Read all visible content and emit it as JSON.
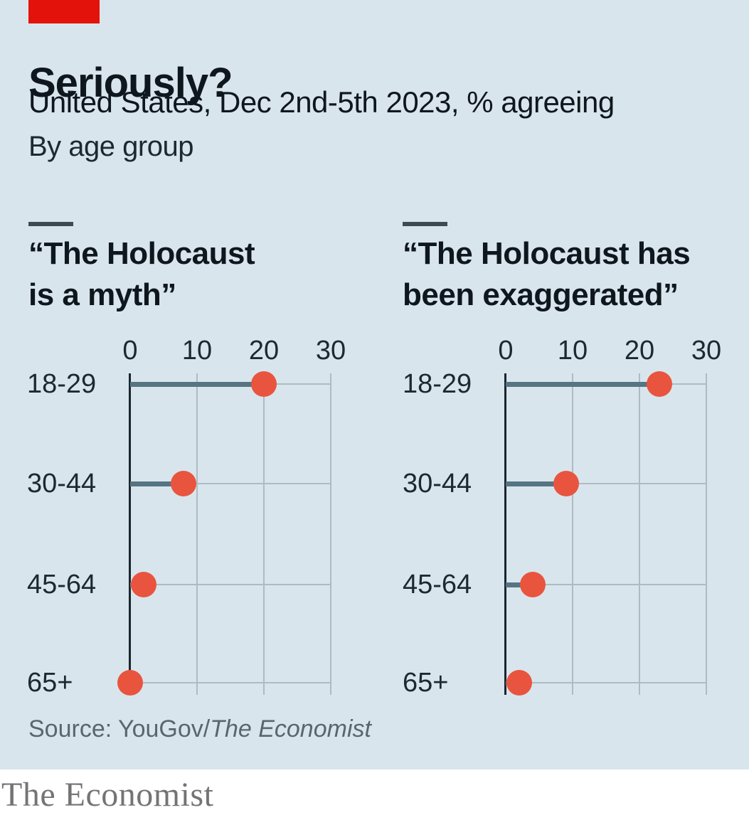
{
  "header": {
    "title": "Seriously?",
    "subtitle": "United States, Dec 2nd-5th 2023, % agreeing",
    "byline": "By age group"
  },
  "source": {
    "prefix": "Source: YouGov/",
    "publication": "The Economist"
  },
  "footer": {
    "brand": "The Economist"
  },
  "colors": {
    "card_bg": "#d9e5ec",
    "red_tab": "#e3120b",
    "dot": "#e9543f",
    "stem": "#567583",
    "axis": "#1a262d",
    "grid": "#aebbc2",
    "text_dark": "#0e171d",
    "source_text": "#5a666e",
    "footer_text": "#747474"
  },
  "chart_data": [
    {
      "type": "scatter",
      "subtype": "dot-plot",
      "title": "“The Holocaust is a myth”",
      "title_lines": [
        "“The Holocaust",
        "is a myth”"
      ],
      "categories": [
        "18-29",
        "30-44",
        "45-64",
        "65+"
      ],
      "values": [
        20,
        8,
        2,
        0
      ],
      "xlabel": "% agreeing",
      "ylabel": "age group",
      "xlim": [
        0,
        30
      ],
      "xticks": [
        0,
        10,
        20,
        30
      ],
      "grid": true,
      "legend_position": "none"
    },
    {
      "type": "scatter",
      "subtype": "dot-plot",
      "title": "“The Holocaust has been exaggerated”",
      "title_lines": [
        "“The Holocaust has",
        "been exaggerated”"
      ],
      "categories": [
        "18-29",
        "30-44",
        "45-64",
        "65+"
      ],
      "values": [
        23,
        9,
        4,
        2
      ],
      "xlabel": "% agreeing",
      "ylabel": "age group",
      "xlim": [
        0,
        30
      ],
      "xticks": [
        0,
        10,
        20,
        30
      ],
      "grid": true,
      "legend_position": "none"
    }
  ]
}
